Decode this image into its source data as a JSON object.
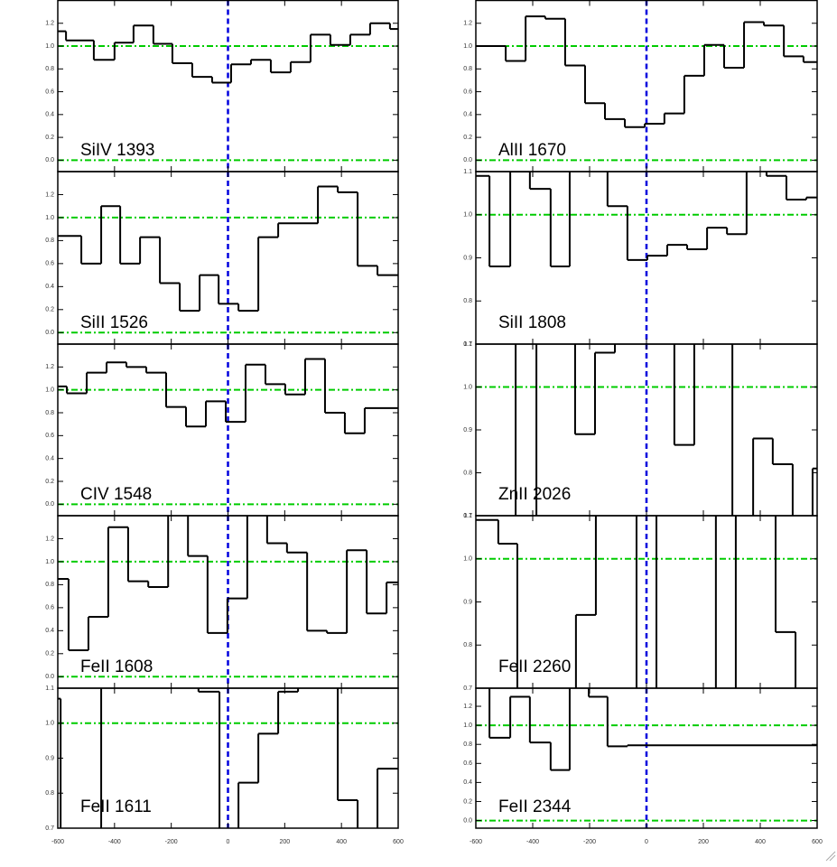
{
  "chart_data": [
    {
      "type": "step",
      "label": "SiIV 1393",
      "x": [
        -600,
        -571,
        -473,
        -400,
        -333,
        -263,
        -196,
        -126,
        -56,
        11,
        81,
        151,
        221,
        291,
        361,
        431,
        501,
        571
      ],
      "values": [
        1.13,
        1.05,
        0.88,
        1.03,
        1.18,
        1.02,
        0.85,
        0.73,
        0.68,
        0.84,
        0.88,
        0.77,
        0.86,
        1.1,
        1.01,
        1.1,
        1.2,
        1.15
      ],
      "xlim": [
        -600,
        600
      ],
      "ylim": [
        -0.1,
        1.4
      ],
      "xticks": [
        -600,
        -400,
        -200,
        0,
        200,
        400,
        600
      ],
      "yticks": [
        {
          "value": 0,
          "label": "0.0"
        },
        0.2,
        0.4,
        0.6,
        0.8,
        {
          "value": 1,
          "label": "1.0"
        },
        1.2
      ],
      "hlines": [
        0,
        1
      ],
      "vlines": [
        0
      ],
      "color": "#000000",
      "hline_color": "#00cc00",
      "vline_color": "#0000dd"
    },
    {
      "type": "step",
      "label": "SiII 1526",
      "x": [
        -600,
        -517,
        -447,
        -380,
        -310,
        -240,
        -170,
        -100,
        -33,
        37,
        107,
        177,
        317,
        387,
        457,
        527
      ],
      "values": [
        0.84,
        0.6,
        1.1,
        0.6,
        0.83,
        0.43,
        0.19,
        0.5,
        0.25,
        0.19,
        0.83,
        0.95,
        1.27,
        1.22,
        0.58,
        0.5
      ],
      "xlim": [
        -600,
        600
      ],
      "ylim": [
        -0.1,
        1.4
      ],
      "xticks": [
        -600,
        -400,
        -200,
        0,
        200,
        400,
        600
      ],
      "yticks": [
        {
          "value": 0,
          "label": "0.0"
        },
        0.2,
        0.4,
        0.6,
        0.8,
        {
          "value": 1,
          "label": "1.0"
        },
        1.2
      ],
      "hlines": [
        0,
        1
      ],
      "vlines": [
        0
      ],
      "color": "#000000",
      "hline_color": "#00cc00",
      "vline_color": "#0000dd"
    },
    {
      "type": "step",
      "label": "CIV 1548",
      "x": [
        -600,
        -568,
        -498,
        -428,
        -358,
        -288,
        -218,
        -148,
        -78,
        -8,
        62,
        132,
        202,
        272,
        342,
        412,
        482
      ],
      "values": [
        1.03,
        0.97,
        1.15,
        1.24,
        1.2,
        1.15,
        0.85,
        0.68,
        0.9,
        0.72,
        1.22,
        1.05,
        0.96,
        1.27,
        0.8,
        0.62,
        0.84
      ],
      "xlim": [
        -600,
        600
      ],
      "ylim": [
        -0.1,
        1.4
      ],
      "xticks": [
        -600,
        -400,
        -200,
        0,
        200,
        400,
        600
      ],
      "yticks": [
        {
          "value": 0,
          "label": "0.0"
        },
        0.2,
        0.4,
        0.6,
        0.8,
        {
          "value": 1,
          "label": "1.0"
        },
        1.2
      ],
      "hlines": [
        0,
        1
      ],
      "vlines": [
        0
      ],
      "color": "#000000",
      "hline_color": "#00cc00",
      "vline_color": "#0000dd"
    },
    {
      "type": "step",
      "label": "FeII 1608",
      "x": [
        -600,
        -562,
        -492,
        -422,
        -352,
        -281,
        -211,
        -141,
        -72,
        -2,
        68,
        138,
        208,
        279,
        349,
        419,
        489,
        559
      ],
      "values": [
        0.85,
        0.23,
        0.52,
        1.3,
        0.83,
        0.78,
        1.45,
        1.05,
        0.38,
        0.68,
        1.45,
        1.16,
        1.08,
        0.4,
        0.38,
        1.1,
        0.55,
        0.82
      ],
      "xlim": [
        -600,
        600
      ],
      "ylim": [
        -0.1,
        1.4
      ],
      "xticks": [
        -600,
        -400,
        -200,
        0,
        200,
        400,
        600
      ],
      "yticks": [
        {
          "value": 0,
          "label": "0.0"
        },
        0.2,
        0.4,
        0.6,
        0.8,
        {
          "value": 1,
          "label": "1.0"
        },
        1.2
      ],
      "hlines": [
        0,
        1
      ],
      "vlines": [
        0
      ],
      "color": "#000000",
      "hline_color": "#00cc00",
      "vline_color": "#0000dd"
    },
    {
      "type": "step",
      "label": "FeII 1611",
      "x": [
        -600,
        -590,
        -447,
        -104,
        -30,
        37,
        107,
        177,
        247,
        387,
        457,
        527
      ],
      "values": [
        1.07,
        0.5,
        1.3,
        1.09,
        0.5,
        0.83,
        0.97,
        1.09,
        1.12,
        0.78,
        0.6,
        0.87
      ],
      "xlim": [
        -600,
        600
      ],
      "ylim": [
        0.7,
        1.1
      ],
      "xticks": [
        -600,
        -400,
        -200,
        0,
        200,
        400,
        600
      ],
      "yticks": [
        0.7,
        0.8,
        0.9,
        {
          "value": 1,
          "label": "1.0"
        },
        1.1
      ],
      "hlines": [
        1
      ],
      "vlines": [
        0
      ],
      "color": "#000000",
      "hline_color": "#00cc00",
      "vline_color": "#0000dd"
    },
    {
      "type": "step",
      "label": "AlII 1670",
      "x": [
        -600,
        -495,
        -425,
        -356,
        -286,
        -216,
        -146,
        -76,
        -6,
        63,
        133,
        203,
        273,
        343,
        413,
        483,
        552
      ],
      "values": [
        1.0,
        0.87,
        1.26,
        1.24,
        0.83,
        0.5,
        0.36,
        0.29,
        0.32,
        0.41,
        0.74,
        1.01,
        0.81,
        1.21,
        1.18,
        0.91,
        0.86
      ],
      "xlim": [
        -600,
        600
      ],
      "ylim": [
        -0.1,
        1.4
      ],
      "xticks": [
        -600,
        -400,
        -200,
        0,
        200,
        400,
        600
      ],
      "yticks": [
        {
          "value": 0,
          "label": "0.0"
        },
        0.2,
        0.4,
        0.6,
        0.8,
        {
          "value": 1,
          "label": "1.0"
        },
        1.2
      ],
      "hlines": [
        0,
        1
      ],
      "vlines": [
        0
      ],
      "color": "#000000",
      "hline_color": "#00cc00",
      "vline_color": "#0000dd"
    },
    {
      "type": "step",
      "label": "SiII 1808",
      "x": [
        -600,
        -552,
        -479,
        -410,
        -337,
        -270,
        -137,
        -67,
        3,
        73,
        143,
        213,
        283,
        352,
        422,
        492,
        562
      ],
      "values": [
        1.09,
        0.88,
        1.1,
        1.06,
        0.88,
        1.2,
        1.02,
        0.895,
        0.905,
        0.93,
        0.92,
        0.97,
        0.955,
        1.105,
        1.09,
        1.035,
        1.04
      ],
      "xlim": [
        -600,
        600
      ],
      "ylim": [
        0.7,
        1.1
      ],
      "xticks": [
        -600,
        -400,
        -200,
        0,
        200,
        400,
        600
      ],
      "yticks": [
        0.7,
        0.8,
        0.9,
        {
          "value": 1,
          "label": "1.0"
        },
        1.1
      ],
      "hlines": [
        1
      ],
      "vlines": [
        0
      ],
      "color": "#000000",
      "hline_color": "#00cc00",
      "vline_color": "#0000dd"
    },
    {
      "type": "step",
      "label": "ZnII 2026",
      "x": [
        -600,
        -460,
        -387,
        -251,
        -181,
        -111,
        98,
        168,
        302,
        375,
        444,
        514,
        584
      ],
      "values": [
        1.2,
        0.6,
        1.2,
        0.89,
        1.08,
        1.2,
        0.865,
        1.2,
        0.6,
        0.88,
        0.82,
        0.6,
        0.81
      ],
      "xlim": [
        -600,
        600
      ],
      "ylim": [
        0.7,
        1.1
      ],
      "xticks": [
        -600,
        -400,
        -200,
        0,
        200,
        400,
        600
      ],
      "yticks": [
        0.7,
        0.8,
        0.9,
        {
          "value": 1,
          "label": "1.0"
        },
        1.1
      ],
      "hlines": [
        1
      ],
      "vlines": [
        0
      ],
      "color": "#000000",
      "hline_color": "#00cc00",
      "vline_color": "#0000dd"
    },
    {
      "type": "step",
      "label": "FeII 2260",
      "x": [
        -600,
        -521,
        -454,
        -248,
        -178,
        -35,
        35,
        244,
        314,
        454,
        524
      ],
      "values": [
        1.09,
        1.035,
        0.6,
        0.87,
        1.2,
        0.6,
        1.2,
        0.6,
        1.2,
        0.83,
        0.6
      ],
      "xlim": [
        -600,
        600
      ],
      "ylim": [
        0.7,
        1.1
      ],
      "xticks": [
        -600,
        -400,
        -200,
        0,
        200,
        400,
        600
      ],
      "yticks": [
        0.7,
        0.8,
        0.9,
        {
          "value": 1,
          "label": "1.0"
        },
        1.1
      ],
      "hlines": [
        1
      ],
      "vlines": [
        0
      ],
      "color": "#000000",
      "hline_color": "#00cc00",
      "vline_color": "#0000dd"
    },
    {
      "type": "step",
      "label": "FeII 2344",
      "x": [
        -600,
        -552,
        -479,
        -410,
        -337,
        -270,
        -203,
        -137,
        -67
      ],
      "values": [
        1.45,
        0.87,
        1.3,
        0.82,
        0.53,
        1.45,
        1.3,
        0.78,
        0.79
      ],
      "xlim": [
        -600,
        600
      ],
      "ylim": [
        -0.08,
        1.39
      ],
      "xticks": [
        -600,
        -400,
        -200,
        0,
        200,
        400,
        600
      ],
      "yticks": [
        {
          "value": 0,
          "label": "0.0"
        },
        0.2,
        0.4,
        0.6,
        0.8,
        {
          "value": 1,
          "label": "1.0"
        },
        1.2
      ],
      "hlines": [
        0,
        1
      ],
      "vlines": [
        0
      ],
      "color": "#000000",
      "hline_color": "#00cc00",
      "vline_color": "#0000dd"
    }
  ]
}
